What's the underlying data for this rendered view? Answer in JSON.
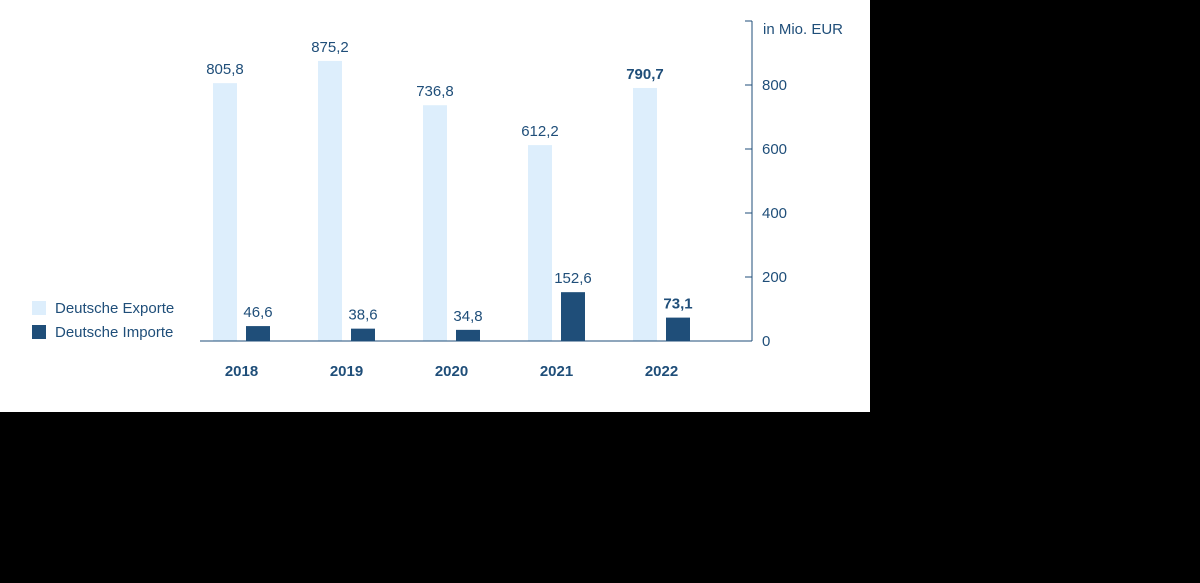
{
  "chart_data": {
    "type": "bar",
    "unit_label": "in Mio. EUR",
    "categories": [
      "2018",
      "2019",
      "2020",
      "2021",
      "2022"
    ],
    "series": [
      {
        "name": "Deutsche Exporte",
        "color": "#ddeefc",
        "values": [
          805.8,
          875.2,
          736.8,
          612.2,
          790.7
        ],
        "labels": [
          "805,8",
          "875,2",
          "736,8",
          "612,2",
          "790,7"
        ]
      },
      {
        "name": "Deutsche Importe",
        "color": "#1f4e79",
        "values": [
          46.6,
          38.6,
          34.8,
          152.6,
          73.1
        ],
        "labels": [
          "46,6",
          "38,6",
          "34,8",
          "152,6",
          "73,1"
        ]
      }
    ],
    "highlight_category": "2022",
    "y_ticks": [
      "0",
      "200",
      "400",
      "600",
      "800"
    ],
    "ylim": [
      0,
      1000
    ],
    "legend_position": "bottom-left",
    "axis_color": "#1f4e79",
    "text_color": "#1f4e79"
  }
}
